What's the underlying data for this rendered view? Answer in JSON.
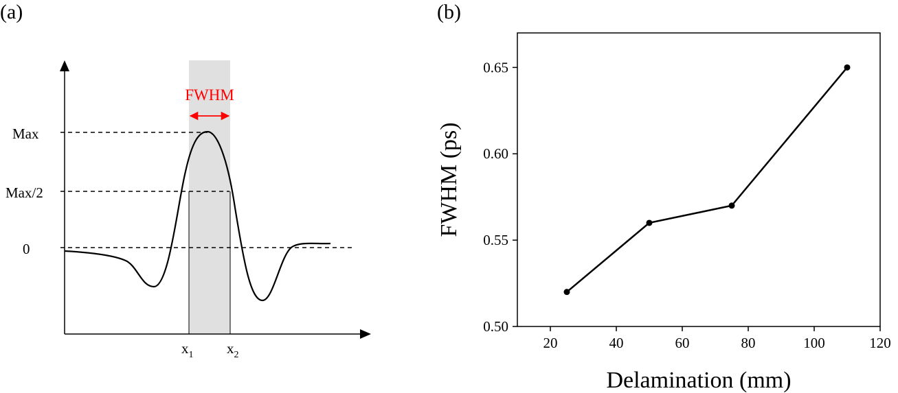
{
  "panel_a": {
    "label": "(a)",
    "fwhm_label": "FWHM",
    "levels": {
      "max": "Max",
      "half": "Max/2",
      "zero": "0"
    },
    "x1": {
      "base": "x",
      "sub": "1"
    },
    "x2": {
      "base": "x",
      "sub": "2"
    },
    "colors": {
      "annotation": "#ff0000",
      "shade": "#e0e0e0"
    }
  },
  "panel_b": {
    "label": "(b)"
  },
  "chart_data": {
    "type": "line",
    "xlabel": "Delamination (mm)",
    "ylabel": "FWHM (ps)",
    "xlim": [
      10,
      120
    ],
    "ylim": [
      0.5,
      0.67
    ],
    "xticks": [
      20,
      40,
      60,
      80,
      100,
      120
    ],
    "yticks": [
      0.5,
      0.55,
      0.6,
      0.65
    ],
    "ytick_labels": [
      "0.50",
      "0.55",
      "0.60",
      "0.65"
    ],
    "grid": false,
    "series": [
      {
        "x": [
          25,
          50,
          75,
          110
        ],
        "y": [
          0.52,
          0.56,
          0.57,
          0.65
        ]
      }
    ]
  }
}
